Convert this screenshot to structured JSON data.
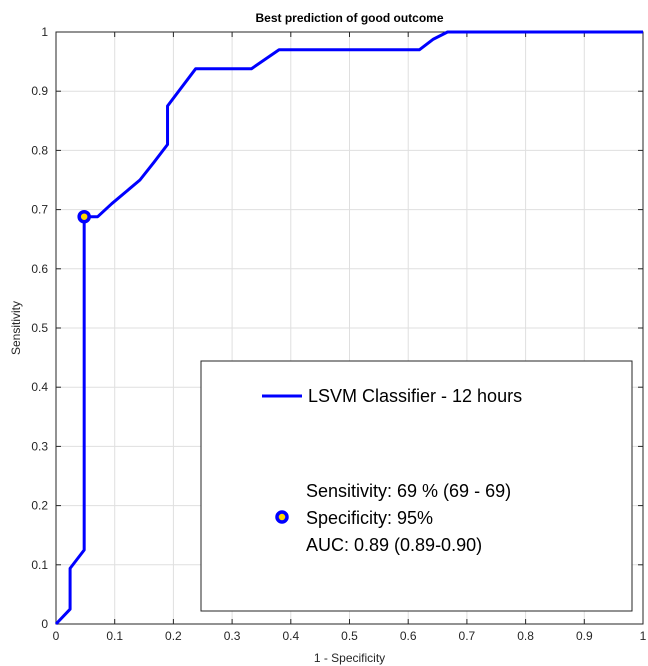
{
  "chart_data": {
    "type": "line",
    "title": "Best prediction of good outcome",
    "xlabel": "1 - Specificity",
    "ylabel": "Sensitivity",
    "xlim": [
      0,
      1
    ],
    "ylim": [
      0,
      1
    ],
    "xticks": [
      0,
      0.1,
      0.2,
      0.3,
      0.4,
      0.5,
      0.6,
      0.7,
      0.8,
      0.9,
      1
    ],
    "xtick_labels": [
      "0",
      "0.1",
      "0.2",
      "0.3",
      "0.4",
      "0.5",
      "0.6",
      "0.7",
      "0.8",
      "0.9",
      "1"
    ],
    "yticks": [
      0,
      0.1,
      0.2,
      0.3,
      0.4,
      0.5,
      0.6,
      0.7,
      0.8,
      0.9,
      1
    ],
    "ytick_labels": [
      "0",
      "0.1",
      "0.2",
      "0.3",
      "0.4",
      "0.5",
      "0.6",
      "0.7",
      "0.8",
      "0.9",
      "1"
    ],
    "grid": true,
    "legend_position": "bottom-right",
    "series": [
      {
        "name": "LSVM Classifier - 12 hours",
        "color": "#0000ff",
        "x": [
          0,
          0.024,
          0.024,
          0.048,
          0.048,
          0.071,
          0.095,
          0.143,
          0.167,
          0.19,
          0.19,
          0.238,
          0.31,
          0.333,
          0.38,
          0.405,
          0.429,
          0.452,
          0.5,
          0.524,
          0.548,
          0.571,
          0.595,
          0.619,
          0.643,
          0.667,
          0.69,
          1
        ],
        "y": [
          0,
          0.025,
          0.094,
          0.125,
          0.688,
          0.688,
          0.71,
          0.75,
          0.78,
          0.81,
          0.875,
          0.938,
          0.938,
          0.938,
          0.97,
          0.97,
          0.97,
          0.97,
          0.97,
          0.97,
          0.97,
          0.97,
          0.97,
          0.97,
          0.988,
          1,
          1,
          1
        ]
      }
    ],
    "marker": {
      "x": 0.048,
      "y": 0.688,
      "color": "#0000ff",
      "fill": "#ffd700"
    },
    "legend": {
      "line_label": "LSVM Classifier - 12 hours",
      "stats": [
        "Sensitivity: 69 % (69 - 69)",
        "Specificity: 95%",
        "AUC: 0.89 (0.89-0.90)"
      ]
    }
  }
}
